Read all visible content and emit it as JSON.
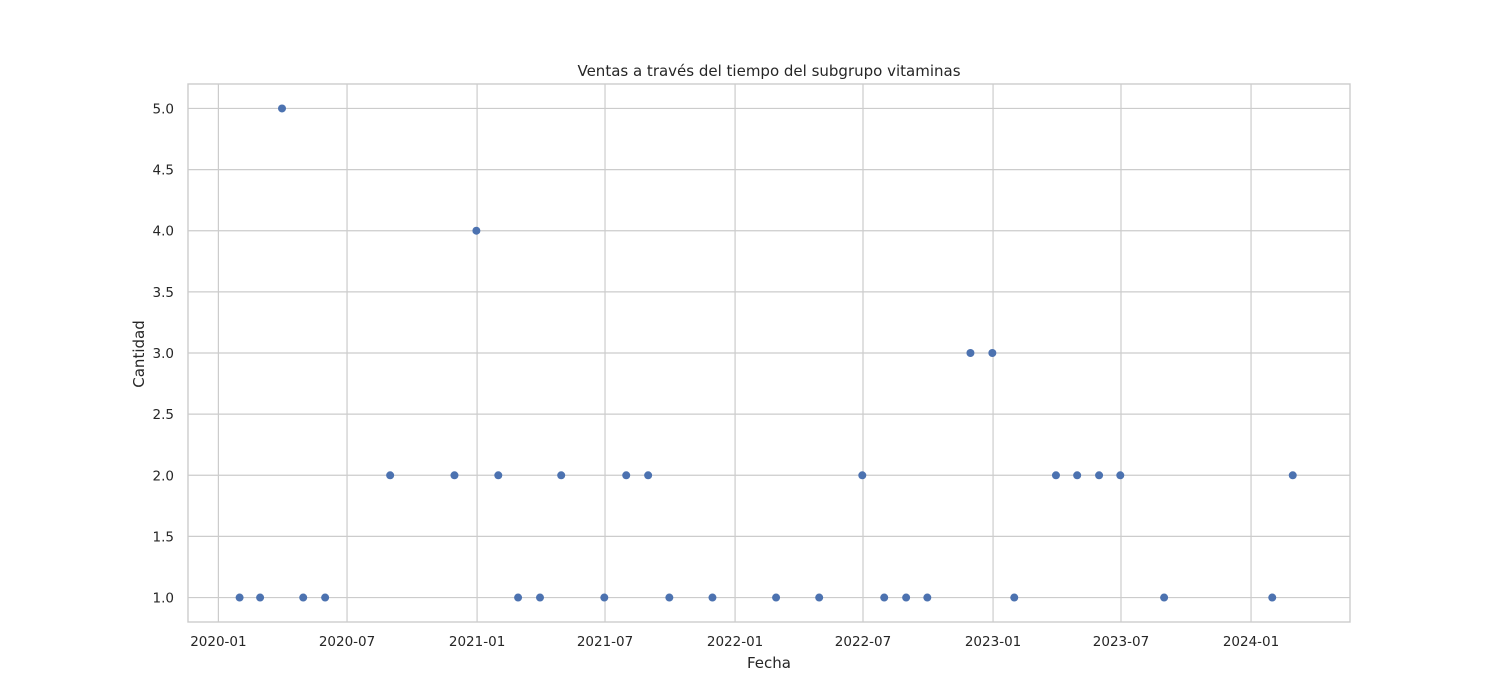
{
  "chart_data": {
    "type": "scatter",
    "title": "Ventas a través del tiempo del subgrupo vitaminas",
    "xlabel": "Fecha",
    "ylabel": "Cantidad",
    "x_axis": "date",
    "xlim": [
      "2019-11-19",
      "2024-05-20"
    ],
    "ylim": [
      0.8,
      5.2
    ],
    "grid": true,
    "marker_color": "#4c72b0",
    "x_ticks": [
      {
        "date": "2020-01-01",
        "label": "2020-01"
      },
      {
        "date": "2020-07-01",
        "label": "2020-07"
      },
      {
        "date": "2021-01-01",
        "label": "2021-01"
      },
      {
        "date": "2021-07-01",
        "label": "2021-07"
      },
      {
        "date": "2022-01-01",
        "label": "2022-01"
      },
      {
        "date": "2022-07-01",
        "label": "2022-07"
      },
      {
        "date": "2023-01-01",
        "label": "2023-01"
      },
      {
        "date": "2023-07-01",
        "label": "2023-07"
      },
      {
        "date": "2024-01-01",
        "label": "2024-01"
      }
    ],
    "y_ticks": [
      {
        "value": 1.0,
        "label": "1.0"
      },
      {
        "value": 1.5,
        "label": "1.5"
      },
      {
        "value": 2.0,
        "label": "2.0"
      },
      {
        "value": 2.5,
        "label": "2.5"
      },
      {
        "value": 3.0,
        "label": "3.0"
      },
      {
        "value": 3.5,
        "label": "3.5"
      },
      {
        "value": 4.0,
        "label": "4.0"
      },
      {
        "value": 4.5,
        "label": "4.5"
      },
      {
        "value": 5.0,
        "label": "5.0"
      }
    ],
    "points": [
      {
        "x": "2020-01-31",
        "y": 1
      },
      {
        "x": "2020-02-29",
        "y": 1
      },
      {
        "x": "2020-03-31",
        "y": 5
      },
      {
        "x": "2020-04-30",
        "y": 1
      },
      {
        "x": "2020-05-31",
        "y": 1
      },
      {
        "x": "2020-08-31",
        "y": 2
      },
      {
        "x": "2020-11-30",
        "y": 2
      },
      {
        "x": "2020-12-31",
        "y": 4
      },
      {
        "x": "2021-01-31",
        "y": 2
      },
      {
        "x": "2021-02-28",
        "y": 1
      },
      {
        "x": "2021-03-31",
        "y": 1
      },
      {
        "x": "2021-04-30",
        "y": 2
      },
      {
        "x": "2021-06-30",
        "y": 1
      },
      {
        "x": "2021-07-31",
        "y": 2
      },
      {
        "x": "2021-08-31",
        "y": 2
      },
      {
        "x": "2021-09-30",
        "y": 1
      },
      {
        "x": "2021-11-30",
        "y": 1
      },
      {
        "x": "2022-02-28",
        "y": 1
      },
      {
        "x": "2022-04-30",
        "y": 1
      },
      {
        "x": "2022-06-30",
        "y": 2
      },
      {
        "x": "2022-07-31",
        "y": 1
      },
      {
        "x": "2022-08-31",
        "y": 1
      },
      {
        "x": "2022-09-30",
        "y": 1
      },
      {
        "x": "2022-11-30",
        "y": 3
      },
      {
        "x": "2022-12-31",
        "y": 3
      },
      {
        "x": "2023-01-31",
        "y": 1
      },
      {
        "x": "2023-03-31",
        "y": 2
      },
      {
        "x": "2023-04-30",
        "y": 2
      },
      {
        "x": "2023-05-31",
        "y": 2
      },
      {
        "x": "2023-06-30",
        "y": 2
      },
      {
        "x": "2023-08-31",
        "y": 1
      },
      {
        "x": "2024-01-31",
        "y": 1
      },
      {
        "x": "2024-02-29",
        "y": 2
      }
    ]
  }
}
